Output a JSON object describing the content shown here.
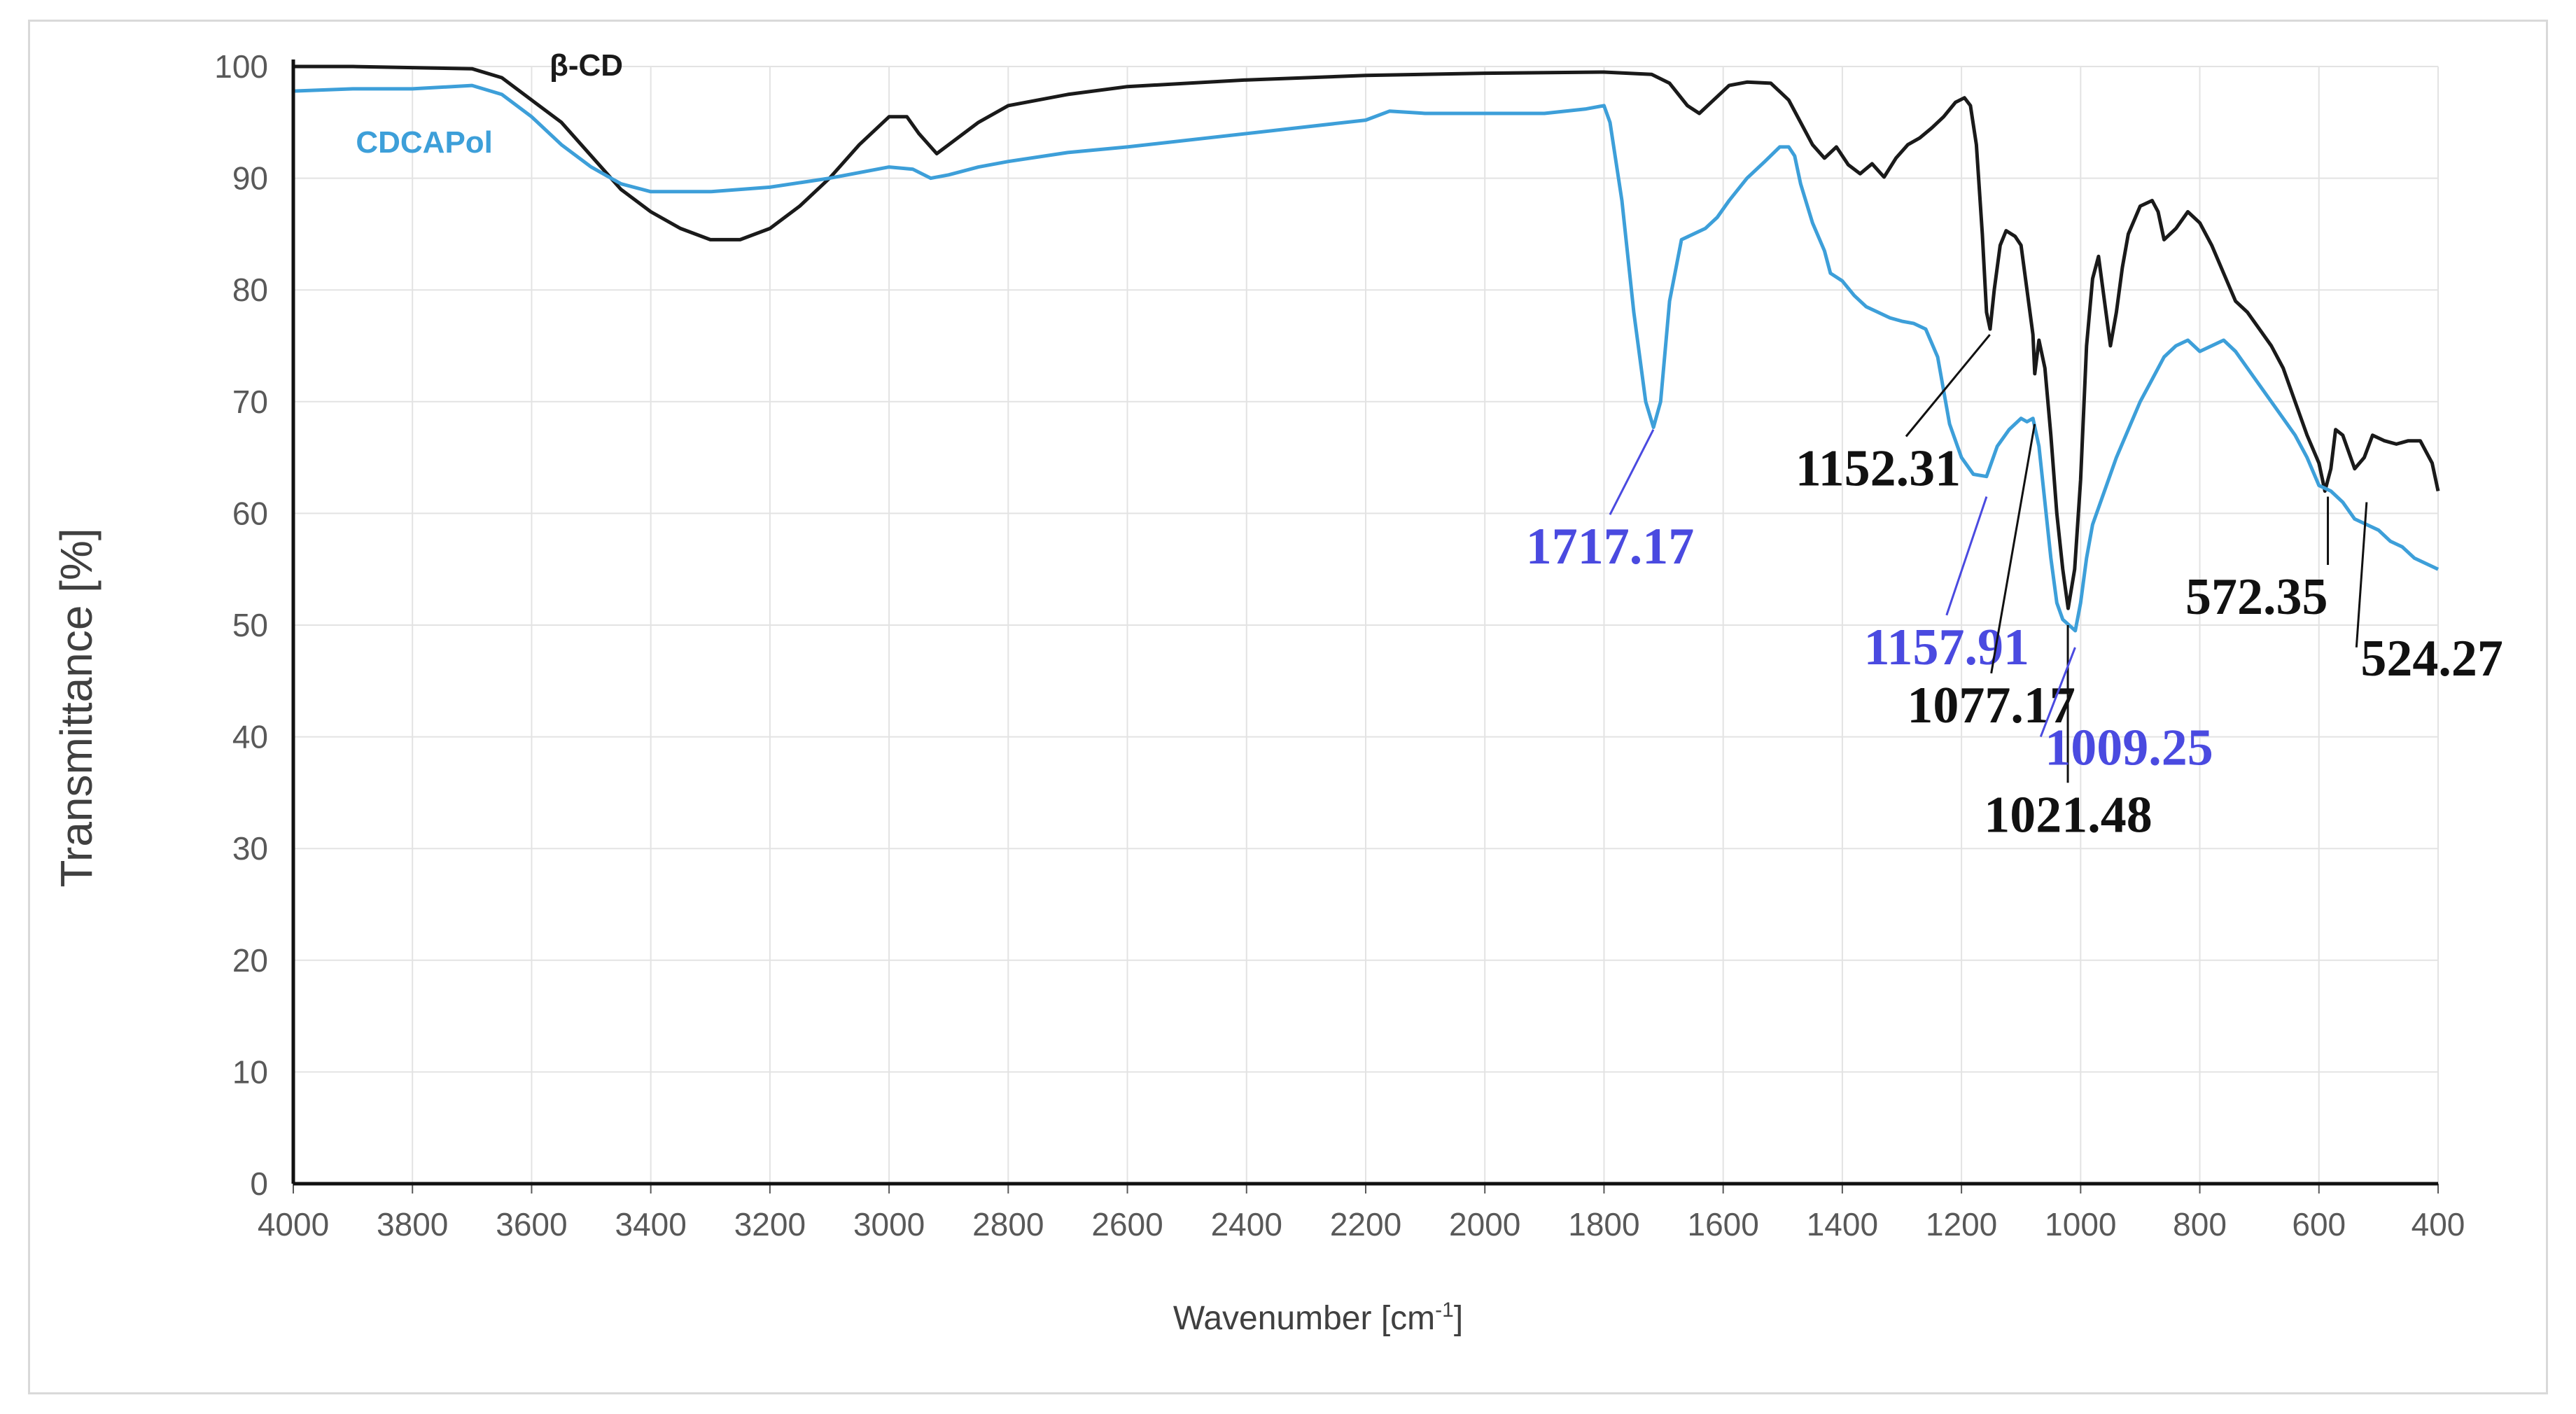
{
  "chart_data": {
    "type": "line",
    "title": "",
    "xlabel": "Wavenumber [cm",
    "xlabel_sup": "-1",
    "xlabel_close": "]",
    "ylabel": "Transmittance [%]",
    "xlim": [
      4000,
      400
    ],
    "ylim": [
      0,
      100
    ],
    "x_ticks": [
      "4000",
      "3800",
      "3600",
      "3400",
      "3200",
      "3000",
      "2800",
      "2600",
      "2400",
      "2200",
      "2000",
      "1800",
      "1600",
      "1400",
      "1200",
      "1000",
      "800",
      "600",
      "400"
    ],
    "y_ticks": [
      "0",
      "10",
      "20",
      "30",
      "40",
      "50",
      "60",
      "70",
      "80",
      "90",
      "100"
    ],
    "grid": true,
    "legend": "inline labels, top-left",
    "series": [
      {
        "name": "β-CD",
        "color": "#1a1a1a",
        "points": [
          [
            4000,
            100
          ],
          [
            3900,
            100
          ],
          [
            3800,
            99.9
          ],
          [
            3700,
            99.8
          ],
          [
            3650,
            99
          ],
          [
            3600,
            97
          ],
          [
            3550,
            95
          ],
          [
            3500,
            92
          ],
          [
            3450,
            89
          ],
          [
            3400,
            87
          ],
          [
            3350,
            85.5
          ],
          [
            3300,
            84.5
          ],
          [
            3250,
            84.5
          ],
          [
            3200,
            85.5
          ],
          [
            3150,
            87.5
          ],
          [
            3100,
            90
          ],
          [
            3050,
            93
          ],
          [
            3000,
            95.5
          ],
          [
            2970,
            95.5
          ],
          [
            2950,
            94
          ],
          [
            2920,
            92.2
          ],
          [
            2900,
            93
          ],
          [
            2850,
            95
          ],
          [
            2800,
            96.5
          ],
          [
            2700,
            97.5
          ],
          [
            2600,
            98.2
          ],
          [
            2400,
            98.8
          ],
          [
            2200,
            99.2
          ],
          [
            2000,
            99.4
          ],
          [
            1800,
            99.5
          ],
          [
            1720,
            99.3
          ],
          [
            1690,
            98.5
          ],
          [
            1660,
            96.5
          ],
          [
            1640,
            95.8
          ],
          [
            1620,
            96.8
          ],
          [
            1590,
            98.3
          ],
          [
            1560,
            98.6
          ],
          [
            1520,
            98.5
          ],
          [
            1490,
            97
          ],
          [
            1470,
            95
          ],
          [
            1450,
            93
          ],
          [
            1430,
            91.8
          ],
          [
            1410,
            92.8
          ],
          [
            1390,
            91.2
          ],
          [
            1370,
            90.4
          ],
          [
            1350,
            91.3
          ],
          [
            1330,
            90.1
          ],
          [
            1310,
            91.8
          ],
          [
            1290,
            93
          ],
          [
            1270,
            93.6
          ],
          [
            1250,
            94.5
          ],
          [
            1230,
            95.5
          ],
          [
            1210,
            96.8
          ],
          [
            1195,
            97.2
          ],
          [
            1185,
            96.5
          ],
          [
            1175,
            93
          ],
          [
            1165,
            85
          ],
          [
            1158,
            78
          ],
          [
            1152,
            76.5
          ],
          [
            1145,
            80
          ],
          [
            1135,
            84
          ],
          [
            1125,
            85.3
          ],
          [
            1110,
            84.8
          ],
          [
            1100,
            84
          ],
          [
            1090,
            80
          ],
          [
            1080,
            76
          ],
          [
            1077,
            72.5
          ],
          [
            1070,
            75.5
          ],
          [
            1060,
            73
          ],
          [
            1050,
            67
          ],
          [
            1040,
            60
          ],
          [
            1030,
            55
          ],
          [
            1021,
            51.5
          ],
          [
            1010,
            55
          ],
          [
            1000,
            63
          ],
          [
            990,
            75
          ],
          [
            980,
            81
          ],
          [
            970,
            83
          ],
          [
            960,
            79
          ],
          [
            950,
            75
          ],
          [
            940,
            78
          ],
          [
            930,
            82
          ],
          [
            920,
            85
          ],
          [
            900,
            87.5
          ],
          [
            880,
            88
          ],
          [
            870,
            87
          ],
          [
            860,
            84.5
          ],
          [
            840,
            85.5
          ],
          [
            820,
            87
          ],
          [
            800,
            86
          ],
          [
            780,
            84
          ],
          [
            760,
            81.5
          ],
          [
            740,
            79
          ],
          [
            720,
            78
          ],
          [
            700,
            76.5
          ],
          [
            680,
            75
          ],
          [
            660,
            73
          ],
          [
            640,
            70
          ],
          [
            620,
            67
          ],
          [
            600,
            64.5
          ],
          [
            590,
            62
          ],
          [
            580,
            64
          ],
          [
            572,
            67.5
          ],
          [
            560,
            67
          ],
          [
            540,
            64
          ],
          [
            524,
            65
          ],
          [
            510,
            67
          ],
          [
            490,
            66.5
          ],
          [
            470,
            66.2
          ],
          [
            450,
            66.5
          ],
          [
            430,
            66.5
          ],
          [
            410,
            64.5
          ],
          [
            400,
            62
          ]
        ]
      },
      {
        "name": "CDCAPol",
        "color": "#3d9fd9",
        "points": [
          [
            4000,
            97.8
          ],
          [
            3900,
            98
          ],
          [
            3800,
            98
          ],
          [
            3700,
            98.3
          ],
          [
            3650,
            97.5
          ],
          [
            3600,
            95.5
          ],
          [
            3550,
            93
          ],
          [
            3500,
            91
          ],
          [
            3450,
            89.5
          ],
          [
            3400,
            88.8
          ],
          [
            3300,
            88.8
          ],
          [
            3200,
            89.2
          ],
          [
            3100,
            90
          ],
          [
            3000,
            91
          ],
          [
            2960,
            90.8
          ],
          [
            2930,
            90
          ],
          [
            2900,
            90.3
          ],
          [
            2850,
            91
          ],
          [
            2800,
            91.5
          ],
          [
            2700,
            92.3
          ],
          [
            2600,
            92.8
          ],
          [
            2400,
            94
          ],
          [
            2200,
            95.2
          ],
          [
            2160,
            96
          ],
          [
            2100,
            95.8
          ],
          [
            2000,
            95.8
          ],
          [
            1900,
            95.8
          ],
          [
            1830,
            96.2
          ],
          [
            1800,
            96.5
          ],
          [
            1790,
            95
          ],
          [
            1770,
            88
          ],
          [
            1750,
            78
          ],
          [
            1730,
            70
          ],
          [
            1717,
            67.7
          ],
          [
            1705,
            70
          ],
          [
            1690,
            79
          ],
          [
            1670,
            84.5
          ],
          [
            1650,
            85
          ],
          [
            1630,
            85.5
          ],
          [
            1610,
            86.5
          ],
          [
            1590,
            88
          ],
          [
            1560,
            90
          ],
          [
            1530,
            91.5
          ],
          [
            1505,
            92.8
          ],
          [
            1490,
            92.8
          ],
          [
            1480,
            92
          ],
          [
            1470,
            89.5
          ],
          [
            1450,
            86
          ],
          [
            1430,
            83.5
          ],
          [
            1420,
            81.5
          ],
          [
            1400,
            80.8
          ],
          [
            1380,
            79.5
          ],
          [
            1360,
            78.5
          ],
          [
            1340,
            78
          ],
          [
            1320,
            77.5
          ],
          [
            1300,
            77.2
          ],
          [
            1280,
            77
          ],
          [
            1260,
            76.5
          ],
          [
            1240,
            74
          ],
          [
            1220,
            68
          ],
          [
            1200,
            65
          ],
          [
            1180,
            63.5
          ],
          [
            1158,
            63.3
          ],
          [
            1140,
            66
          ],
          [
            1120,
            67.5
          ],
          [
            1100,
            68.5
          ],
          [
            1090,
            68.2
          ],
          [
            1080,
            68.5
          ],
          [
            1070,
            66
          ],
          [
            1060,
            61
          ],
          [
            1050,
            56
          ],
          [
            1040,
            52
          ],
          [
            1030,
            50.5
          ],
          [
            1009,
            49.5
          ],
          [
            1000,
            52
          ],
          [
            990,
            56
          ],
          [
            980,
            59
          ],
          [
            960,
            62
          ],
          [
            940,
            65
          ],
          [
            920,
            67.5
          ],
          [
            900,
            70
          ],
          [
            880,
            72
          ],
          [
            860,
            74
          ],
          [
            840,
            75
          ],
          [
            820,
            75.5
          ],
          [
            800,
            74.5
          ],
          [
            780,
            75
          ],
          [
            760,
            75.5
          ],
          [
            740,
            74.5
          ],
          [
            720,
            73
          ],
          [
            700,
            71.5
          ],
          [
            680,
            70
          ],
          [
            660,
            68.5
          ],
          [
            640,
            67
          ],
          [
            620,
            65
          ],
          [
            600,
            62.5
          ],
          [
            580,
            62
          ],
          [
            560,
            61
          ],
          [
            540,
            59.5
          ],
          [
            520,
            59
          ],
          [
            500,
            58.5
          ],
          [
            480,
            57.5
          ],
          [
            460,
            57
          ],
          [
            440,
            56
          ],
          [
            420,
            55.5
          ],
          [
            400,
            55
          ]
        ]
      }
    ],
    "annotations": [
      {
        "text": "1717.17",
        "color": "#4a4ae0",
        "x": 1717.17,
        "y": 67.5,
        "label_x": 1790,
        "label_y": 55.5,
        "anchor": "middle"
      },
      {
        "text": "1152.31",
        "color": "#111111",
        "x": 1152.31,
        "y": 76,
        "label_x": 1340,
        "label_y": 62.5,
        "anchor": "middle"
      },
      {
        "text": "1157.91",
        "color": "#4a4ae0",
        "x": 1157.91,
        "y": 61.5,
        "label_x": 1225,
        "label_y": 46.5,
        "anchor": "middle"
      },
      {
        "text": "1077.17",
        "color": "#111111",
        "x": 1077.17,
        "y": 68,
        "label_x": 1150,
        "label_y": 41.3,
        "anchor": "middle"
      },
      {
        "text": "1021.48",
        "color": "#111111",
        "x": 1021.48,
        "y": 50,
        "label_x": 1021,
        "label_y": 31.5,
        "anchor": "middle"
      },
      {
        "text": "1009.25",
        "color": "#4a4ae0",
        "x": 1009.25,
        "y": 48,
        "label_x": 1060,
        "label_y": 37.5,
        "anchor": "start"
      },
      {
        "text": "572.35",
        "color": "#111111",
        "x": 585,
        "y": 61.5,
        "label_x": 585,
        "label_y": 51,
        "anchor": "end"
      },
      {
        "text": "524.27",
        "color": "#111111",
        "x": 520,
        "y": 61,
        "label_x": 530,
        "label_y": 45.5,
        "anchor": "start"
      }
    ]
  }
}
